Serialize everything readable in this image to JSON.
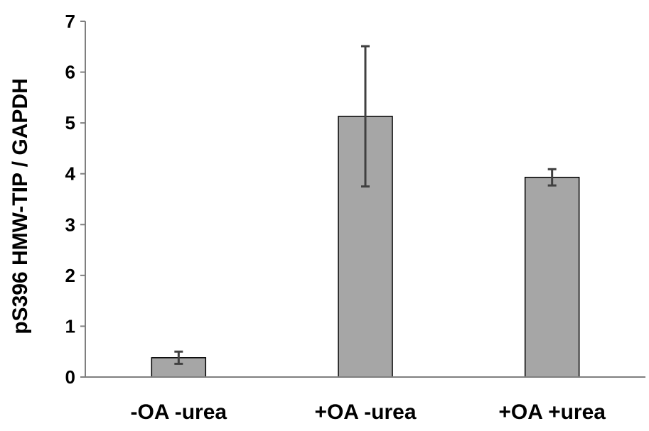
{
  "chart_data": {
    "type": "bar",
    "title": "",
    "xlabel": "",
    "ylabel": "pS396 HMW-TIP / GAPDH",
    "categories": [
      "-OA -urea",
      "+OA -urea",
      "+OA +urea"
    ],
    "values": [
      0.38,
      5.13,
      3.93
    ],
    "error": [
      0.12,
      1.38,
      0.16
    ],
    "ylim": [
      0,
      7
    ],
    "yticks": [
      "0",
      "1",
      "2",
      "3",
      "4",
      "5",
      "6",
      "7"
    ],
    "grid": false,
    "colors": {
      "bar": "#a6a6a6",
      "bar_edge": "#000000",
      "error_bar": "#404040",
      "axis": "#7f7f7f"
    }
  }
}
